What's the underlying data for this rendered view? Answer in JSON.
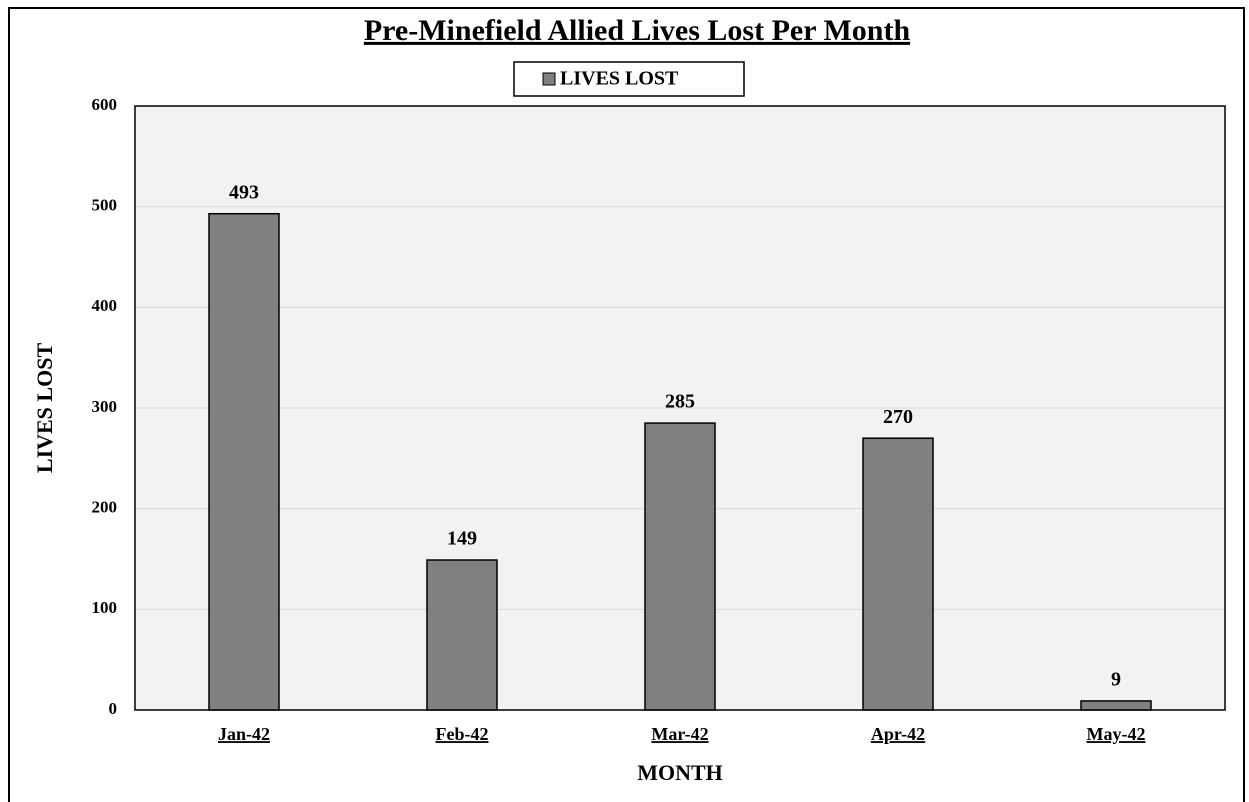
{
  "chart_data": {
    "type": "bar",
    "title": "Pre-Minefield Allied Lives Lost Per Month",
    "x_label": "MONTH",
    "y_label": "LIVES LOST",
    "categories": [
      "Jan-42",
      "Feb-42",
      "Mar-42",
      "Apr-42",
      "May-42"
    ],
    "series": [
      {
        "name": "LIVES LOST",
        "color": "#808080",
        "values": [
          493,
          149,
          285,
          270,
          9
        ]
      }
    ],
    "ylim": [
      0,
      600
    ],
    "yticks": [
      0,
      100,
      200,
      300,
      400,
      500,
      600
    ],
    "grid": true,
    "legend": "top"
  }
}
